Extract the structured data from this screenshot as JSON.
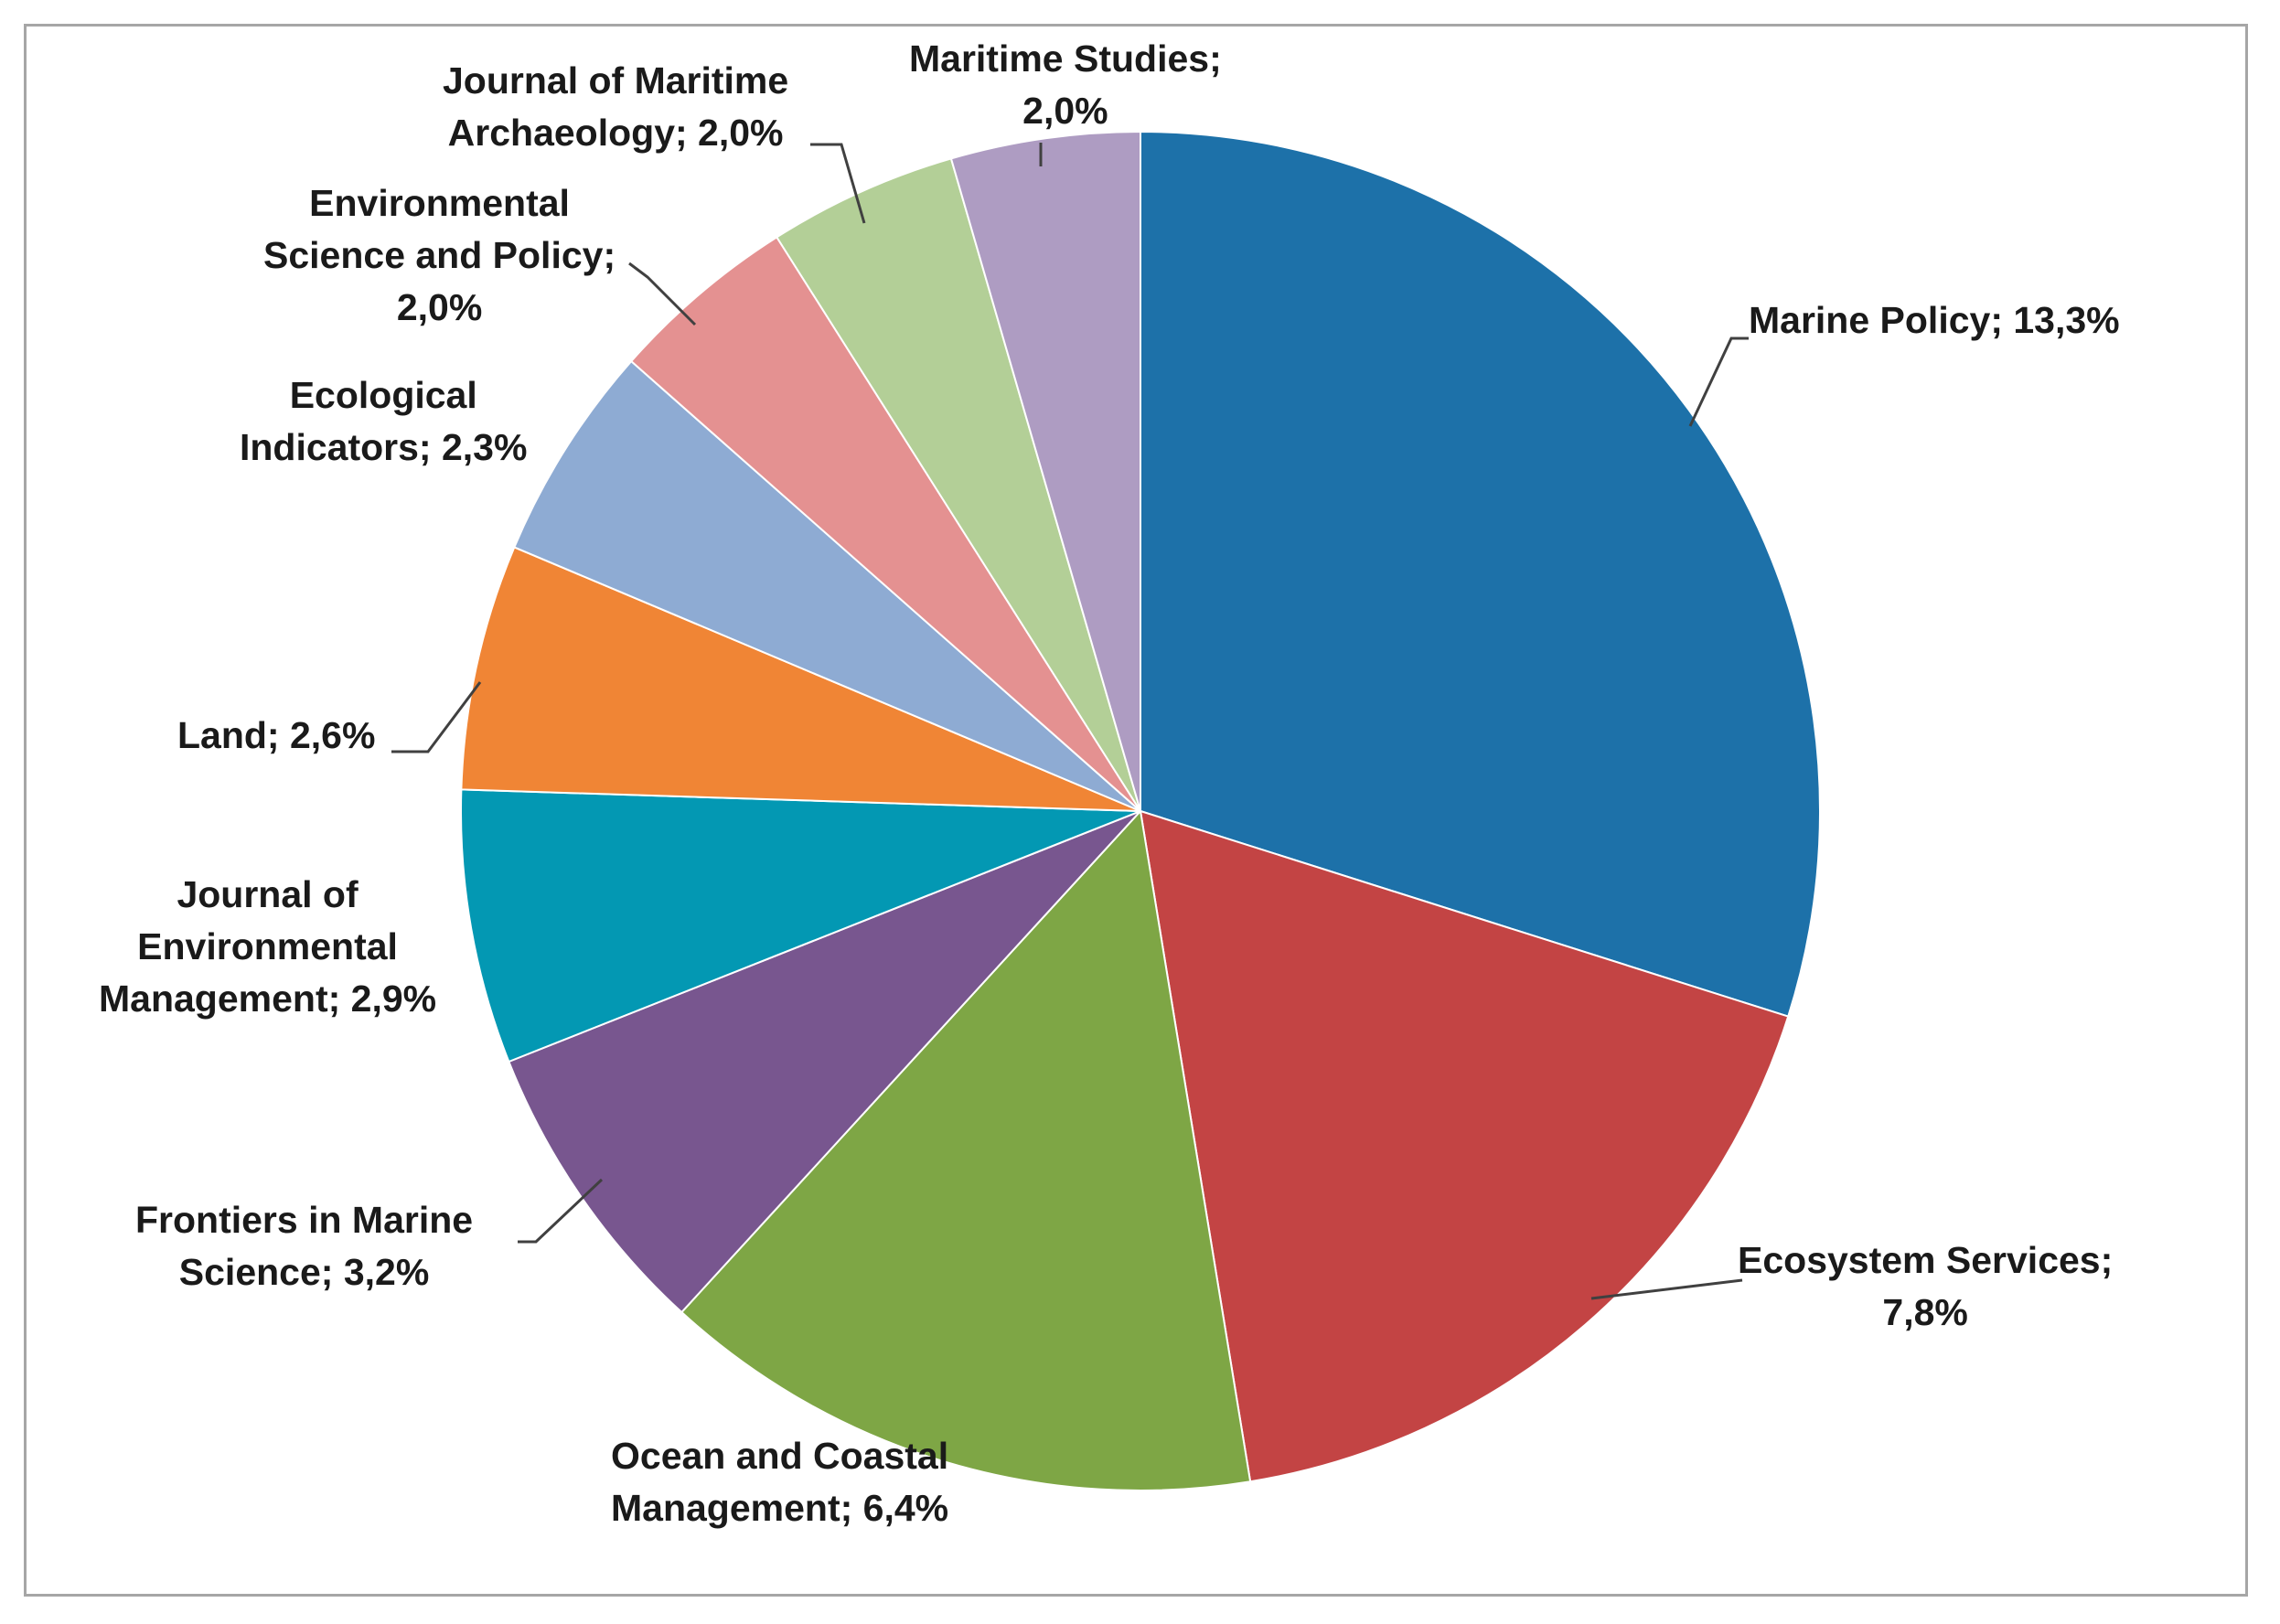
{
  "chart_data": {
    "type": "pie",
    "start_angle_deg": 0,
    "direction": "clockwise",
    "slices": [
      {
        "label_lines": [
          "Marine Policy;  13,3%"
        ],
        "name": "Marine Policy",
        "value": 13.3,
        "color": "#1d71a9"
      },
      {
        "label_lines": [
          "Ecosystem Services;",
          "7,8%"
        ],
        "name": "Ecosystem Services",
        "value": 7.8,
        "color": "#c34444"
      },
      {
        "label_lines": [
          "Ocean and Coastal",
          "Management; 6,4%"
        ],
        "name": "Ocean and Coastal Management",
        "value": 6.4,
        "color": "#7ea645"
      },
      {
        "label_lines": [
          "Frontiers in Marine",
          "Science; 3,2%"
        ],
        "name": "Frontiers in Marine Science",
        "value": 3.2,
        "color": "#78568f"
      },
      {
        "label_lines": [
          "Journal of",
          "Environmental",
          "Management; 2,9%"
        ],
        "name": "Journal of Environmental Management",
        "value": 2.9,
        "color": "#0398b3"
      },
      {
        "label_lines": [
          "Land; 2,6%"
        ],
        "name": "Land",
        "value": 2.6,
        "color": "#f08535"
      },
      {
        "label_lines": [
          "Ecological",
          "Indicators; 2,3%"
        ],
        "name": "Ecological Indicators",
        "value": 2.3,
        "color": "#8eabd3"
      },
      {
        "label_lines": [
          "Environmental",
          "Science and Policy;",
          "2,0%"
        ],
        "name": "Environmental Science and Policy",
        "value": 2.0,
        "color": "#e49191"
      },
      {
        "label_lines": [
          "Journal of Maritime",
          "Archaeology; 2,0%"
        ],
        "name": "Journal of Maritime Archaeology",
        "value": 2.0,
        "color": "#b3cf97"
      },
      {
        "label_lines": [
          "Maritime Studies;",
          "2,0%"
        ],
        "name": "Maritime Studies",
        "value": 2.0,
        "color": "#ae9cc2"
      }
    ]
  }
}
